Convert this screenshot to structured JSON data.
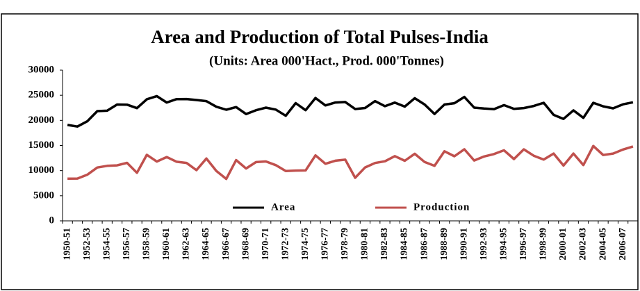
{
  "chart_data": {
    "type": "line",
    "title": "Area and Production of Total Pulses-India",
    "subtitle": "(Units: Area 000'Hact., Prod. 000'Tonnes)",
    "categories": [
      "1950-51",
      null,
      "1952-53",
      null,
      "1954-55",
      null,
      "1956-57",
      null,
      "1958-59",
      null,
      "1960-61",
      null,
      "1962-63",
      null,
      "1964-65",
      null,
      "1966-67",
      null,
      "1968-69",
      null,
      "1970-71",
      null,
      "1972-73",
      null,
      "1974-75",
      null,
      "1976-77",
      null,
      "1978-79",
      null,
      "1980-81",
      null,
      "1982-83",
      null,
      "1984-85",
      null,
      "1986-87",
      null,
      "1988-89",
      null,
      "1990-91",
      null,
      "1992-93",
      null,
      "1994-95",
      null,
      "1996-97",
      null,
      "1998-99",
      null,
      "2000-01",
      null,
      "2002-03",
      null,
      "2004-05",
      null,
      "2006-07",
      null
    ],
    "series": [
      {
        "name": "Area",
        "color": "#000000",
        "values": [
          19090,
          18780,
          19820,
          21840,
          21930,
          23150,
          23130,
          22440,
          24210,
          24830,
          23560,
          24240,
          24250,
          24050,
          23840,
          22720,
          22120,
          22650,
          21260,
          22020,
          22540,
          22150,
          20920,
          23430,
          22020,
          24450,
          22980,
          23560,
          23660,
          22260,
          22460,
          23840,
          22830,
          23540,
          22740,
          24420,
          23160,
          21270,
          23150,
          23420,
          24660,
          22540,
          22360,
          22250,
          23030,
          22280,
          22450,
          22870,
          23500,
          21100,
          20300,
          22000,
          20500,
          23500,
          22800,
          22400,
          23200,
          23600
        ]
      },
      {
        "name": "Production",
        "color": "#c0504d",
        "values": [
          8410,
          8420,
          9190,
          10620,
          10950,
          11040,
          11550,
          9560,
          13150,
          11800,
          12700,
          11760,
          11530,
          10090,
          12420,
          9940,
          8350,
          12100,
          10420,
          11690,
          11820,
          11090,
          9910,
          10010,
          10030,
          13040,
          11360,
          11970,
          12180,
          8570,
          10630,
          11510,
          11860,
          12890,
          11960,
          13360,
          11710,
          10960,
          13850,
          12860,
          14260,
          12020,
          12820,
          13300,
          14040,
          12310,
          14240,
          12970,
          12200,
          13400,
          11000,
          13400,
          11100,
          14900,
          13100,
          13400,
          14200,
          14800
        ]
      }
    ],
    "ylim": [
      0,
      30000
    ],
    "yticks": [
      0,
      5000,
      10000,
      15000,
      20000,
      25000,
      30000
    ]
  }
}
